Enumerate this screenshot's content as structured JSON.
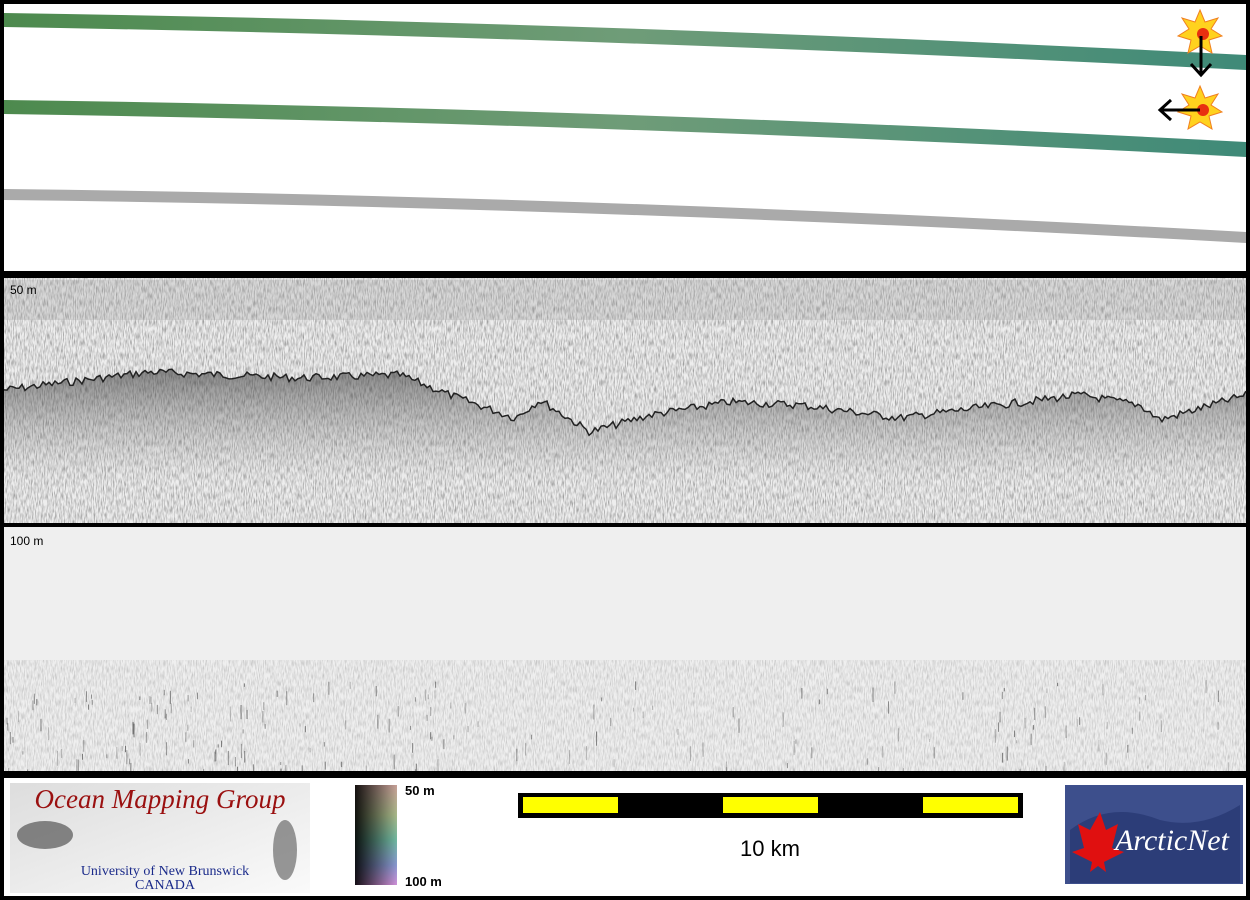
{
  "panels": {
    "upper_depth_label": "50 m",
    "lower_depth_label": "100 m"
  },
  "logo": {
    "title": "Ocean Mapping Group",
    "university": "University of New Brunswick",
    "country": "CANADA"
  },
  "colorbar": {
    "top_label": "50 m",
    "bottom_label": "100 m"
  },
  "scale_bar": {
    "label": "10 km"
  },
  "partner_logo": {
    "label": "ArcticNet"
  }
}
